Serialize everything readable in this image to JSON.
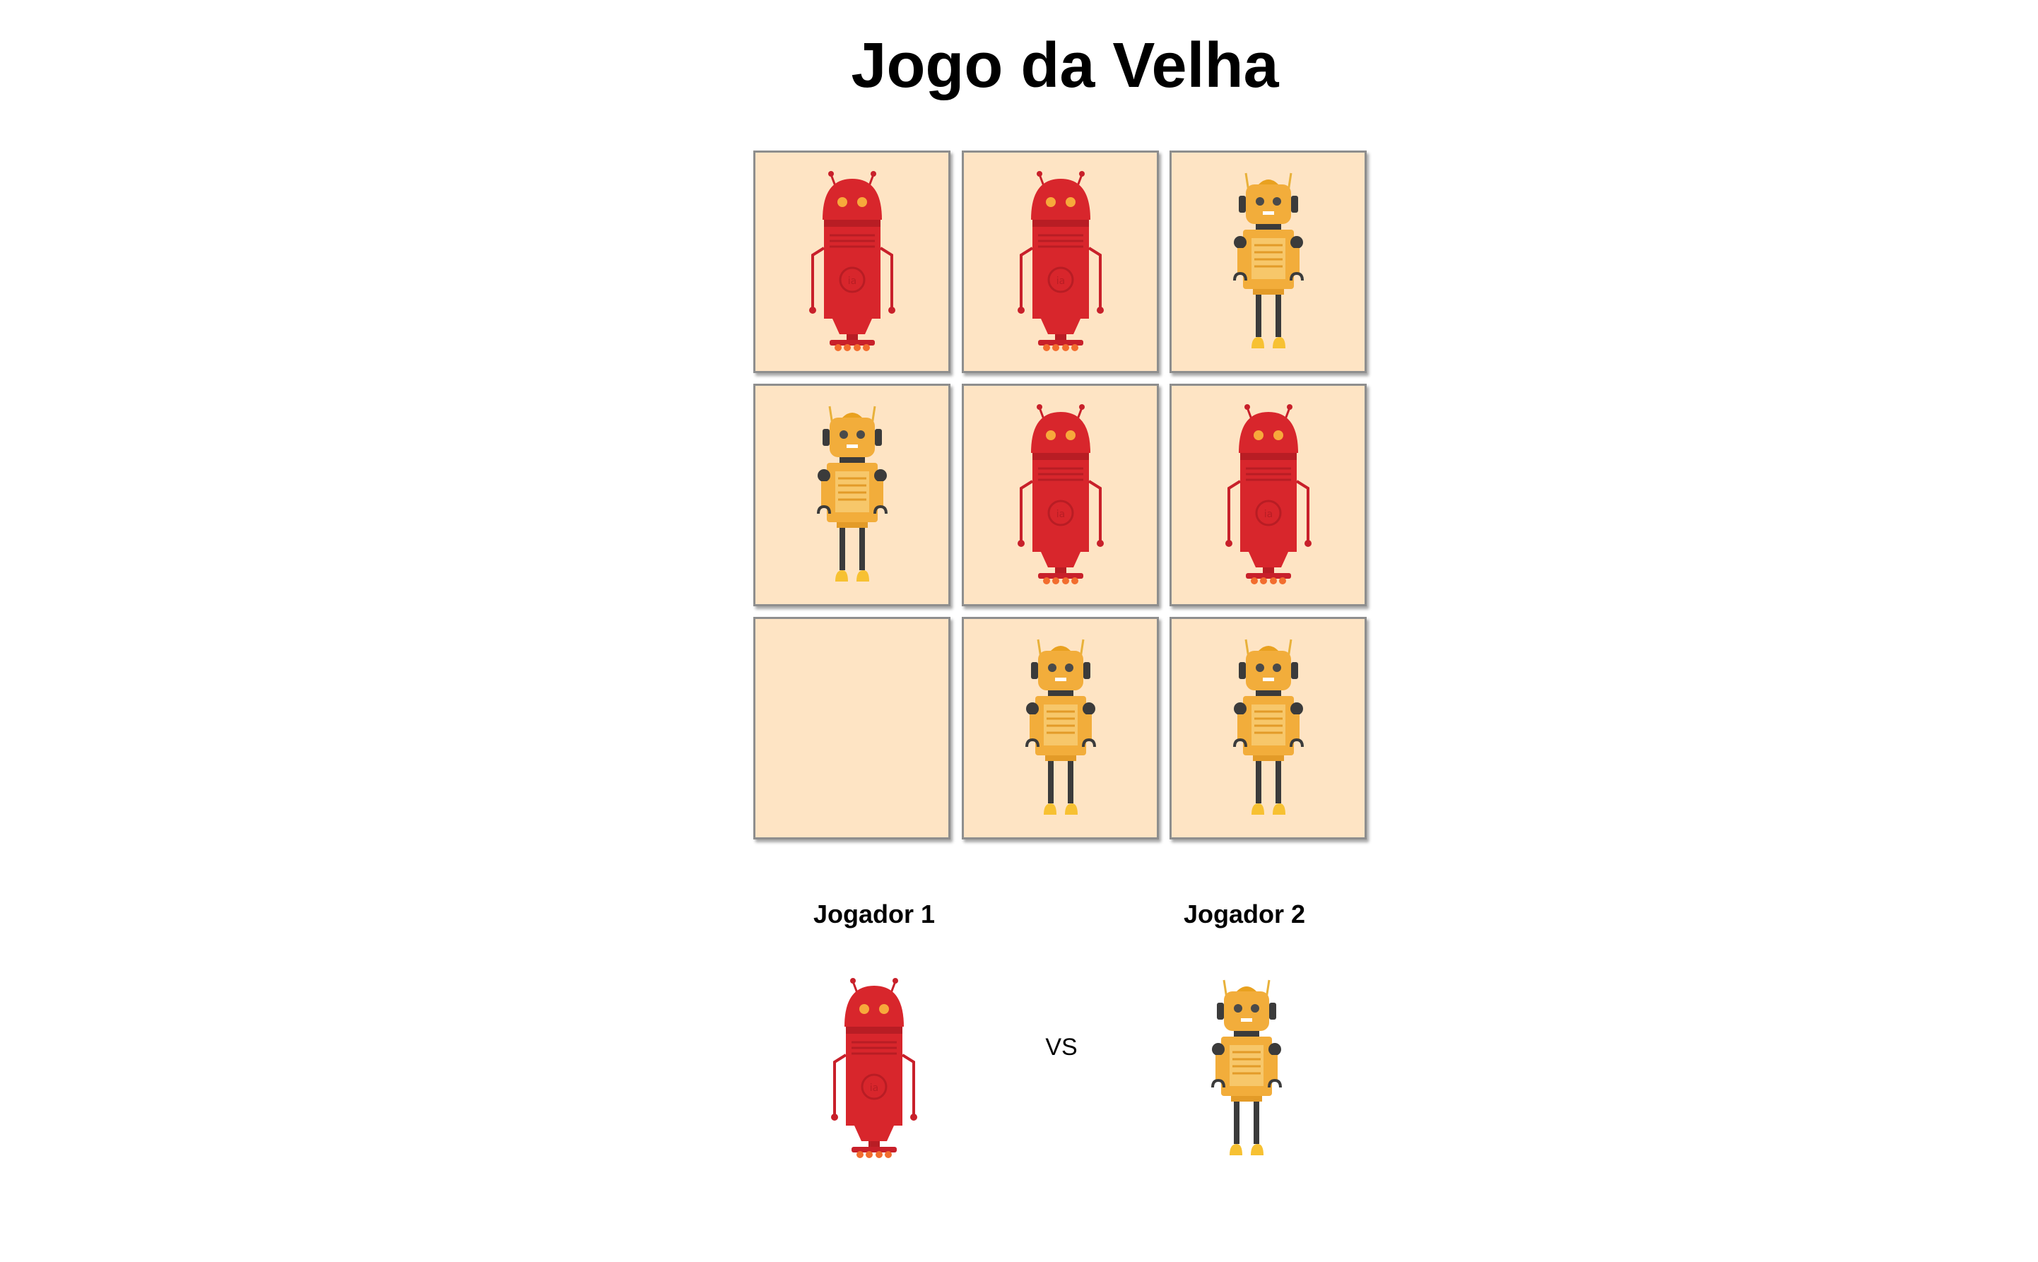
{
  "title": "Jogo da Velha",
  "board": {
    "cells": [
      "red",
      "red",
      "yellow",
      "yellow",
      "red",
      "red",
      "",
      "yellow",
      "yellow"
    ]
  },
  "players": {
    "player1": {
      "label": "Jogador 1",
      "robot": "red"
    },
    "vs": "VS",
    "player2": {
      "label": "Jogador 2",
      "robot": "yellow"
    }
  },
  "colors": {
    "cell_bg": "#fee4c4",
    "red_robot": "#d8262c",
    "yellow_robot": "#f2ad3b"
  }
}
